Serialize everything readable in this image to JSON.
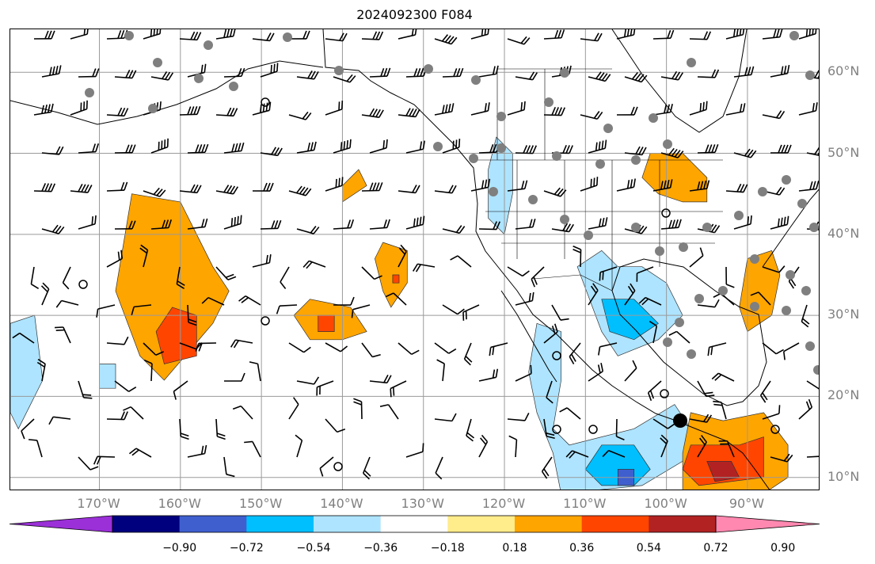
{
  "title": "2024092300 F084",
  "map": {
    "lon_range": [
      -180,
      -80
    ],
    "lat_range": [
      8,
      65
    ],
    "lat_labels": [
      {
        "lat": 60,
        "text": "60°N"
      },
      {
        "lat": 50,
        "text": "50°N"
      },
      {
        "lat": 40,
        "text": "40°N"
      },
      {
        "lat": 30,
        "text": "30°N"
      },
      {
        "lat": 20,
        "text": "20°N"
      },
      {
        "lat": 10,
        "text": "10°N"
      }
    ],
    "lon_labels": [
      {
        "lon": -170,
        "text": "170°W"
      },
      {
        "lon": -160,
        "text": "160°W"
      },
      {
        "lon": -150,
        "text": "150°W"
      },
      {
        "lon": -140,
        "text": "140°W"
      },
      {
        "lon": -130,
        "text": "130°W"
      },
      {
        "lon": -120,
        "text": "120°W"
      },
      {
        "lon": -110,
        "text": "110°W"
      },
      {
        "lon": -100,
        "text": "100°W"
      },
      {
        "lon": -90,
        "text": "90°W"
      }
    ],
    "gridlines": true
  },
  "colorbar": {
    "colors": [
      "#9b30d8",
      "#00007f",
      "#3f5fcf",
      "#00bfff",
      "#aee4ff",
      "#ffffff",
      "#ffec8b",
      "#ffa500",
      "#ff4500",
      "#b22222",
      "#ff88b0"
    ],
    "boundaries": [
      -0.9,
      -0.72,
      -0.54,
      -0.36,
      -0.18,
      0.18,
      0.36,
      0.54,
      0.72,
      0.9
    ],
    "tick_labels": [
      "−0.90",
      "−0.72",
      "−0.54",
      "−0.36",
      "−0.18",
      "0.18",
      "0.36",
      "0.54",
      "0.72",
      "0.90"
    ],
    "extend": "both"
  },
  "field_blobs": [
    {
      "level": 0.36,
      "pts": [
        [
          -166,
          45
        ],
        [
          -160,
          44
        ],
        [
          -156,
          36
        ],
        [
          -154,
          33
        ],
        [
          -156,
          29
        ],
        [
          -162,
          22
        ],
        [
          -165,
          25
        ],
        [
          -168,
          33
        ]
      ]
    },
    {
      "level": 0.54,
      "pts": [
        [
          -161,
          31
        ],
        [
          -158,
          30
        ],
        [
          -158,
          25
        ],
        [
          -162,
          24
        ],
        [
          -163,
          28
        ]
      ]
    },
    {
      "level": -0.36,
      "pts": [
        [
          -181,
          29
        ],
        [
          -178,
          30
        ],
        [
          -177,
          22
        ],
        [
          -180,
          16
        ],
        [
          -181,
          18
        ]
      ]
    },
    {
      "level": 0.36,
      "pts": [
        [
          -144,
          32
        ],
        [
          -139,
          31
        ],
        [
          -137,
          28
        ],
        [
          -140,
          27
        ],
        [
          -144,
          27
        ],
        [
          -146,
          30
        ]
      ]
    },
    {
      "level": 0.54,
      "pts": [
        [
          -143,
          30
        ],
        [
          -141,
          30
        ],
        [
          -141,
          28
        ],
        [
          -143,
          28
        ]
      ]
    },
    {
      "level": 0.36,
      "pts": [
        [
          -135,
          39
        ],
        [
          -132,
          38
        ],
        [
          -132,
          34
        ],
        [
          -134,
          31
        ],
        [
          -135,
          33
        ],
        [
          -136,
          37
        ]
      ]
    },
    {
      "level": 0.54,
      "pts": [
        [
          -133.8,
          35
        ],
        [
          -133,
          35
        ],
        [
          -133,
          34
        ],
        [
          -133.8,
          34
        ]
      ]
    },
    {
      "level": 0.36,
      "pts": [
        [
          -140,
          46
        ],
        [
          -138,
          48
        ],
        [
          -137,
          46
        ],
        [
          -140,
          44
        ]
      ]
    },
    {
      "level": -0.36,
      "pts": [
        [
          -121,
          52
        ],
        [
          -119,
          50
        ],
        [
          -119,
          45
        ],
        [
          -120,
          40
        ],
        [
          -122,
          42
        ],
        [
          -122,
          48
        ]
      ]
    },
    {
      "level": -0.36,
      "pts": [
        [
          -116,
          29
        ],
        [
          -113,
          28
        ],
        [
          -113,
          22
        ],
        [
          -114,
          16
        ],
        [
          -112,
          14
        ],
        [
          -104,
          16
        ],
        [
          -99,
          19
        ],
        [
          -97,
          16
        ],
        [
          -98,
          12
        ],
        [
          -103,
          9
        ],
        [
          -113,
          8
        ],
        [
          -114,
          13
        ],
        [
          -116,
          18
        ],
        [
          -117,
          23
        ]
      ]
    },
    {
      "level": -0.54,
      "pts": [
        [
          -108,
          14
        ],
        [
          -104,
          14
        ],
        [
          -102,
          11
        ],
        [
          -104,
          9
        ],
        [
          -108,
          9
        ],
        [
          -110,
          11
        ]
      ]
    },
    {
      "level": -0.72,
      "pts": [
        [
          -106,
          11
        ],
        [
          -104,
          11
        ],
        [
          -104,
          9
        ],
        [
          -106,
          9
        ]
      ]
    },
    {
      "level": -0.36,
      "pts": [
        [
          -111,
          36
        ],
        [
          -108,
          38
        ],
        [
          -106,
          36
        ],
        [
          -103,
          36
        ],
        [
          -100,
          34
        ],
        [
          -98,
          30
        ],
        [
          -101,
          27
        ],
        [
          -106,
          25
        ],
        [
          -108,
          28
        ]
      ]
    },
    {
      "level": -0.54,
      "pts": [
        [
          -108,
          32
        ],
        [
          -104,
          32
        ],
        [
          -101,
          29
        ],
        [
          -104,
          27
        ],
        [
          -107,
          28
        ]
      ]
    },
    {
      "level": 0.36,
      "pts": [
        [
          -102,
          50
        ],
        [
          -98,
          50
        ],
        [
          -95,
          47
        ],
        [
          -95,
          44
        ],
        [
          -98,
          44
        ],
        [
          -101,
          45
        ],
        [
          -103,
          47
        ]
      ]
    },
    {
      "level": 0.36,
      "pts": [
        [
          -90,
          37
        ],
        [
          -87,
          38
        ],
        [
          -86,
          35
        ],
        [
          -87,
          30
        ],
        [
          -90,
          28
        ],
        [
          -91,
          31
        ]
      ]
    },
    {
      "level": 0.36,
      "pts": [
        [
          -97,
          18
        ],
        [
          -93,
          17
        ],
        [
          -88,
          18
        ],
        [
          -85,
          14
        ],
        [
          -85,
          10
        ],
        [
          -88,
          8
        ],
        [
          -98,
          8
        ],
        [
          -98,
          13
        ]
      ]
    },
    {
      "level": 0.54,
      "pts": [
        [
          -97,
          14
        ],
        [
          -91,
          14
        ],
        [
          -88,
          15
        ],
        [
          -88,
          10
        ],
        [
          -96,
          9
        ],
        [
          -98,
          11
        ]
      ]
    },
    {
      "level": 0.72,
      "pts": [
        [
          -95,
          12
        ],
        [
          -92,
          12
        ],
        [
          -91,
          10
        ],
        [
          -94,
          9.5
        ]
      ]
    },
    {
      "level": -0.36,
      "pts": [
        [
          -170,
          24
        ],
        [
          -168,
          24
        ],
        [
          -168,
          21
        ],
        [
          -170,
          21
        ]
      ]
    }
  ]
}
